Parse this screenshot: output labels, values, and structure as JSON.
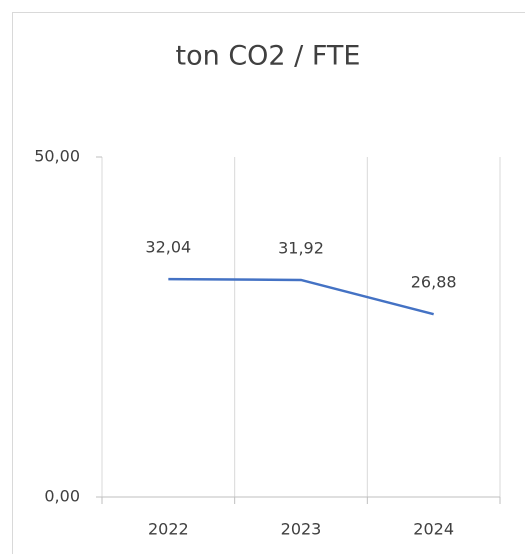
{
  "chart_data": {
    "type": "line",
    "title": "ton CO2 / FTE",
    "categories": [
      "2022",
      "2023",
      "2024"
    ],
    "series": [
      {
        "name": "ton CO2 / FTE",
        "color": "#4472c4",
        "values": [
          32.04,
          31.92,
          26.88
        ],
        "value_labels": [
          "32,04",
          "31,92",
          "26,88"
        ]
      }
    ],
    "ylim": [
      0,
      50
    ],
    "yticks": [
      {
        "value": 0,
        "label": "0,00"
      },
      {
        "value": 50,
        "label": "50,00"
      }
    ],
    "xgrid": true
  }
}
